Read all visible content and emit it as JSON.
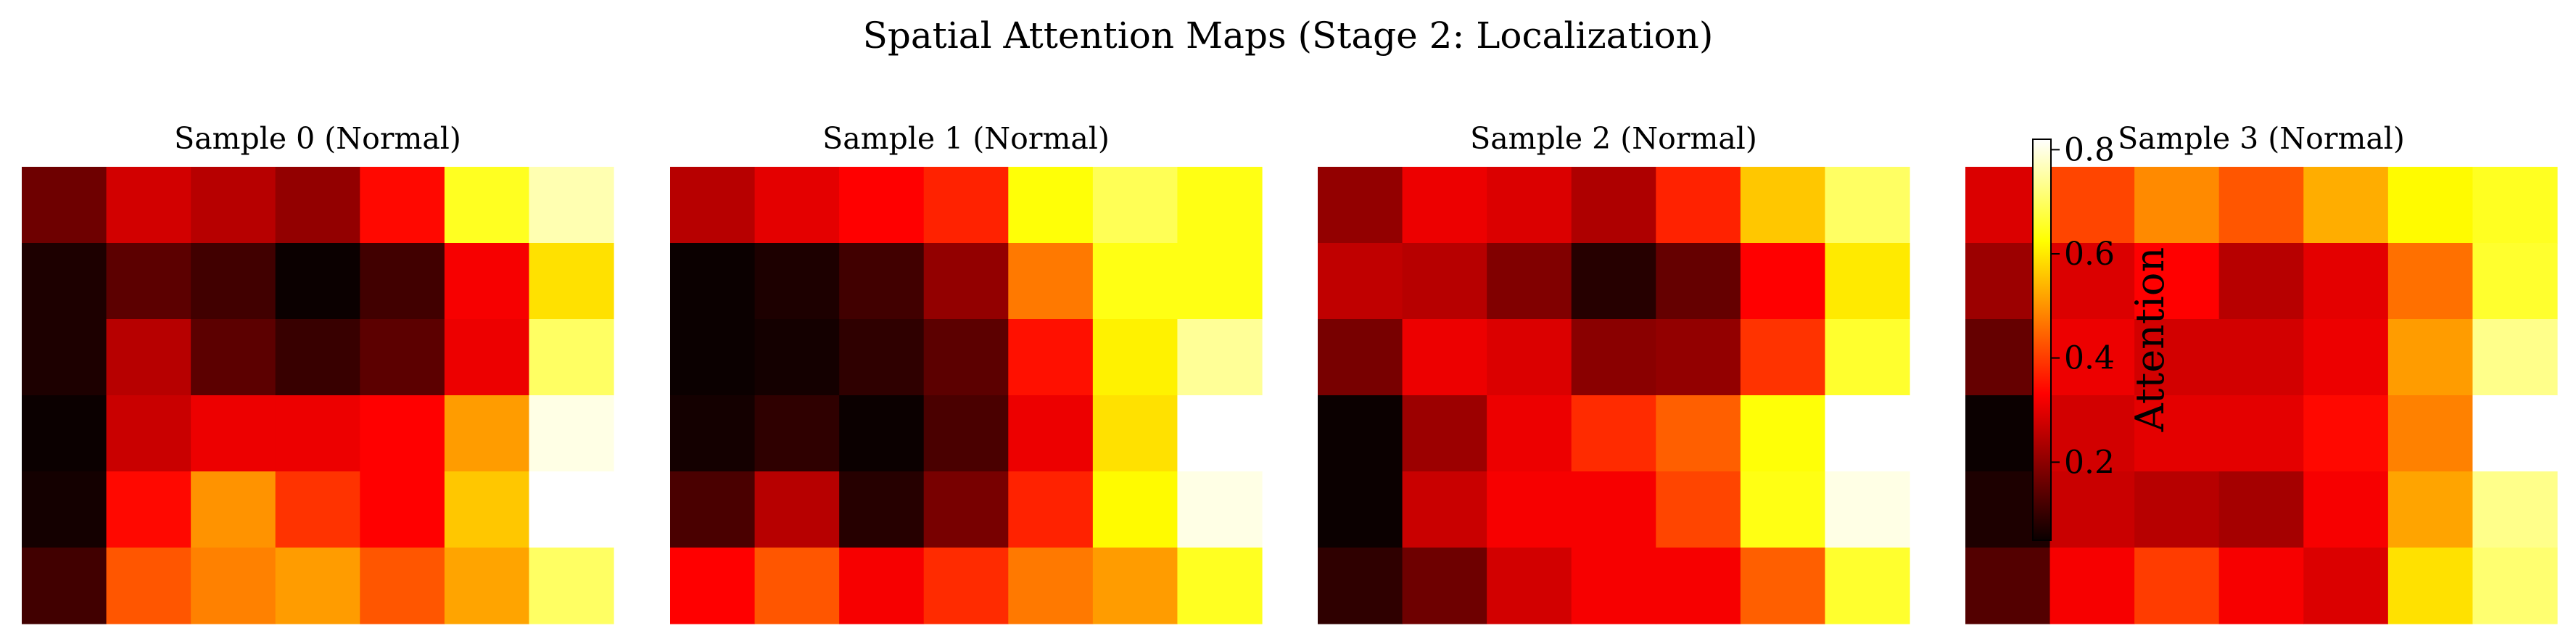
{
  "suptitle": "Spatial Attention Maps (Stage 2: Localization)",
  "colormap": "hot",
  "chart_data": {
    "type": "heatmap",
    "title": "Spatial Attention Maps (Stage 2: Localization)",
    "rows": 6,
    "cols": 7,
    "colorbar": {
      "label": "Attention",
      "range": [
        0.05,
        0.82
      ],
      "ticks": [
        0.2,
        0.4,
        0.6,
        0.8
      ],
      "tick_labels": [
        "0.2",
        "0.4",
        "0.6",
        "0.8"
      ]
    },
    "panels": [
      {
        "title": "Sample 0 (Normal)",
        "values": [
          [
            0.16,
            0.27,
            0.24,
            0.2,
            0.34,
            0.65,
            0.76
          ],
          [
            0.07,
            0.14,
            0.11,
            0.05,
            0.11,
            0.31,
            0.59
          ],
          [
            0.07,
            0.24,
            0.14,
            0.1,
            0.14,
            0.3,
            0.7
          ],
          [
            0.04,
            0.26,
            0.3,
            0.3,
            0.33,
            0.51,
            0.8
          ],
          [
            0.06,
            0.34,
            0.5,
            0.39,
            0.33,
            0.56,
            0.82
          ],
          [
            0.11,
            0.43,
            0.48,
            0.51,
            0.43,
            0.52,
            0.7
          ]
        ]
      },
      {
        "title": "Sample 1 (Normal)",
        "values": [
          [
            0.24,
            0.29,
            0.32,
            0.37,
            0.63,
            0.69,
            0.64
          ],
          [
            0.05,
            0.07,
            0.11,
            0.2,
            0.47,
            0.64,
            0.64
          ],
          [
            0.04,
            0.06,
            0.09,
            0.14,
            0.35,
            0.61,
            0.74
          ],
          [
            0.06,
            0.09,
            0.05,
            0.12,
            0.3,
            0.59,
            0.82
          ],
          [
            0.12,
            0.24,
            0.08,
            0.17,
            0.37,
            0.62,
            0.8
          ],
          [
            0.32,
            0.43,
            0.31,
            0.38,
            0.47,
            0.51,
            0.65
          ]
        ]
      },
      {
        "title": "Sample 2 (Normal)",
        "values": [
          [
            0.2,
            0.3,
            0.28,
            0.23,
            0.37,
            0.56,
            0.7
          ],
          [
            0.25,
            0.24,
            0.18,
            0.08,
            0.15,
            0.33,
            0.6
          ],
          [
            0.17,
            0.3,
            0.28,
            0.19,
            0.2,
            0.39,
            0.66
          ],
          [
            0.04,
            0.21,
            0.3,
            0.38,
            0.44,
            0.63,
            0.82
          ],
          [
            0.04,
            0.26,
            0.31,
            0.31,
            0.41,
            0.64,
            0.8
          ],
          [
            0.09,
            0.16,
            0.27,
            0.31,
            0.31,
            0.44,
            0.66
          ]
        ]
      },
      {
        "title": "Sample 3 (Normal)",
        "values": [
          [
            0.28,
            0.41,
            0.49,
            0.43,
            0.53,
            0.62,
            0.65
          ],
          [
            0.21,
            0.28,
            0.33,
            0.24,
            0.29,
            0.46,
            0.66
          ],
          [
            0.15,
            0.3,
            0.27,
            0.27,
            0.3,
            0.51,
            0.73
          ],
          [
            0.04,
            0.27,
            0.29,
            0.29,
            0.34,
            0.48,
            0.82
          ],
          [
            0.07,
            0.26,
            0.24,
            0.22,
            0.31,
            0.52,
            0.73
          ],
          [
            0.13,
            0.31,
            0.4,
            0.31,
            0.28,
            0.59,
            0.71
          ]
        ]
      }
    ]
  }
}
